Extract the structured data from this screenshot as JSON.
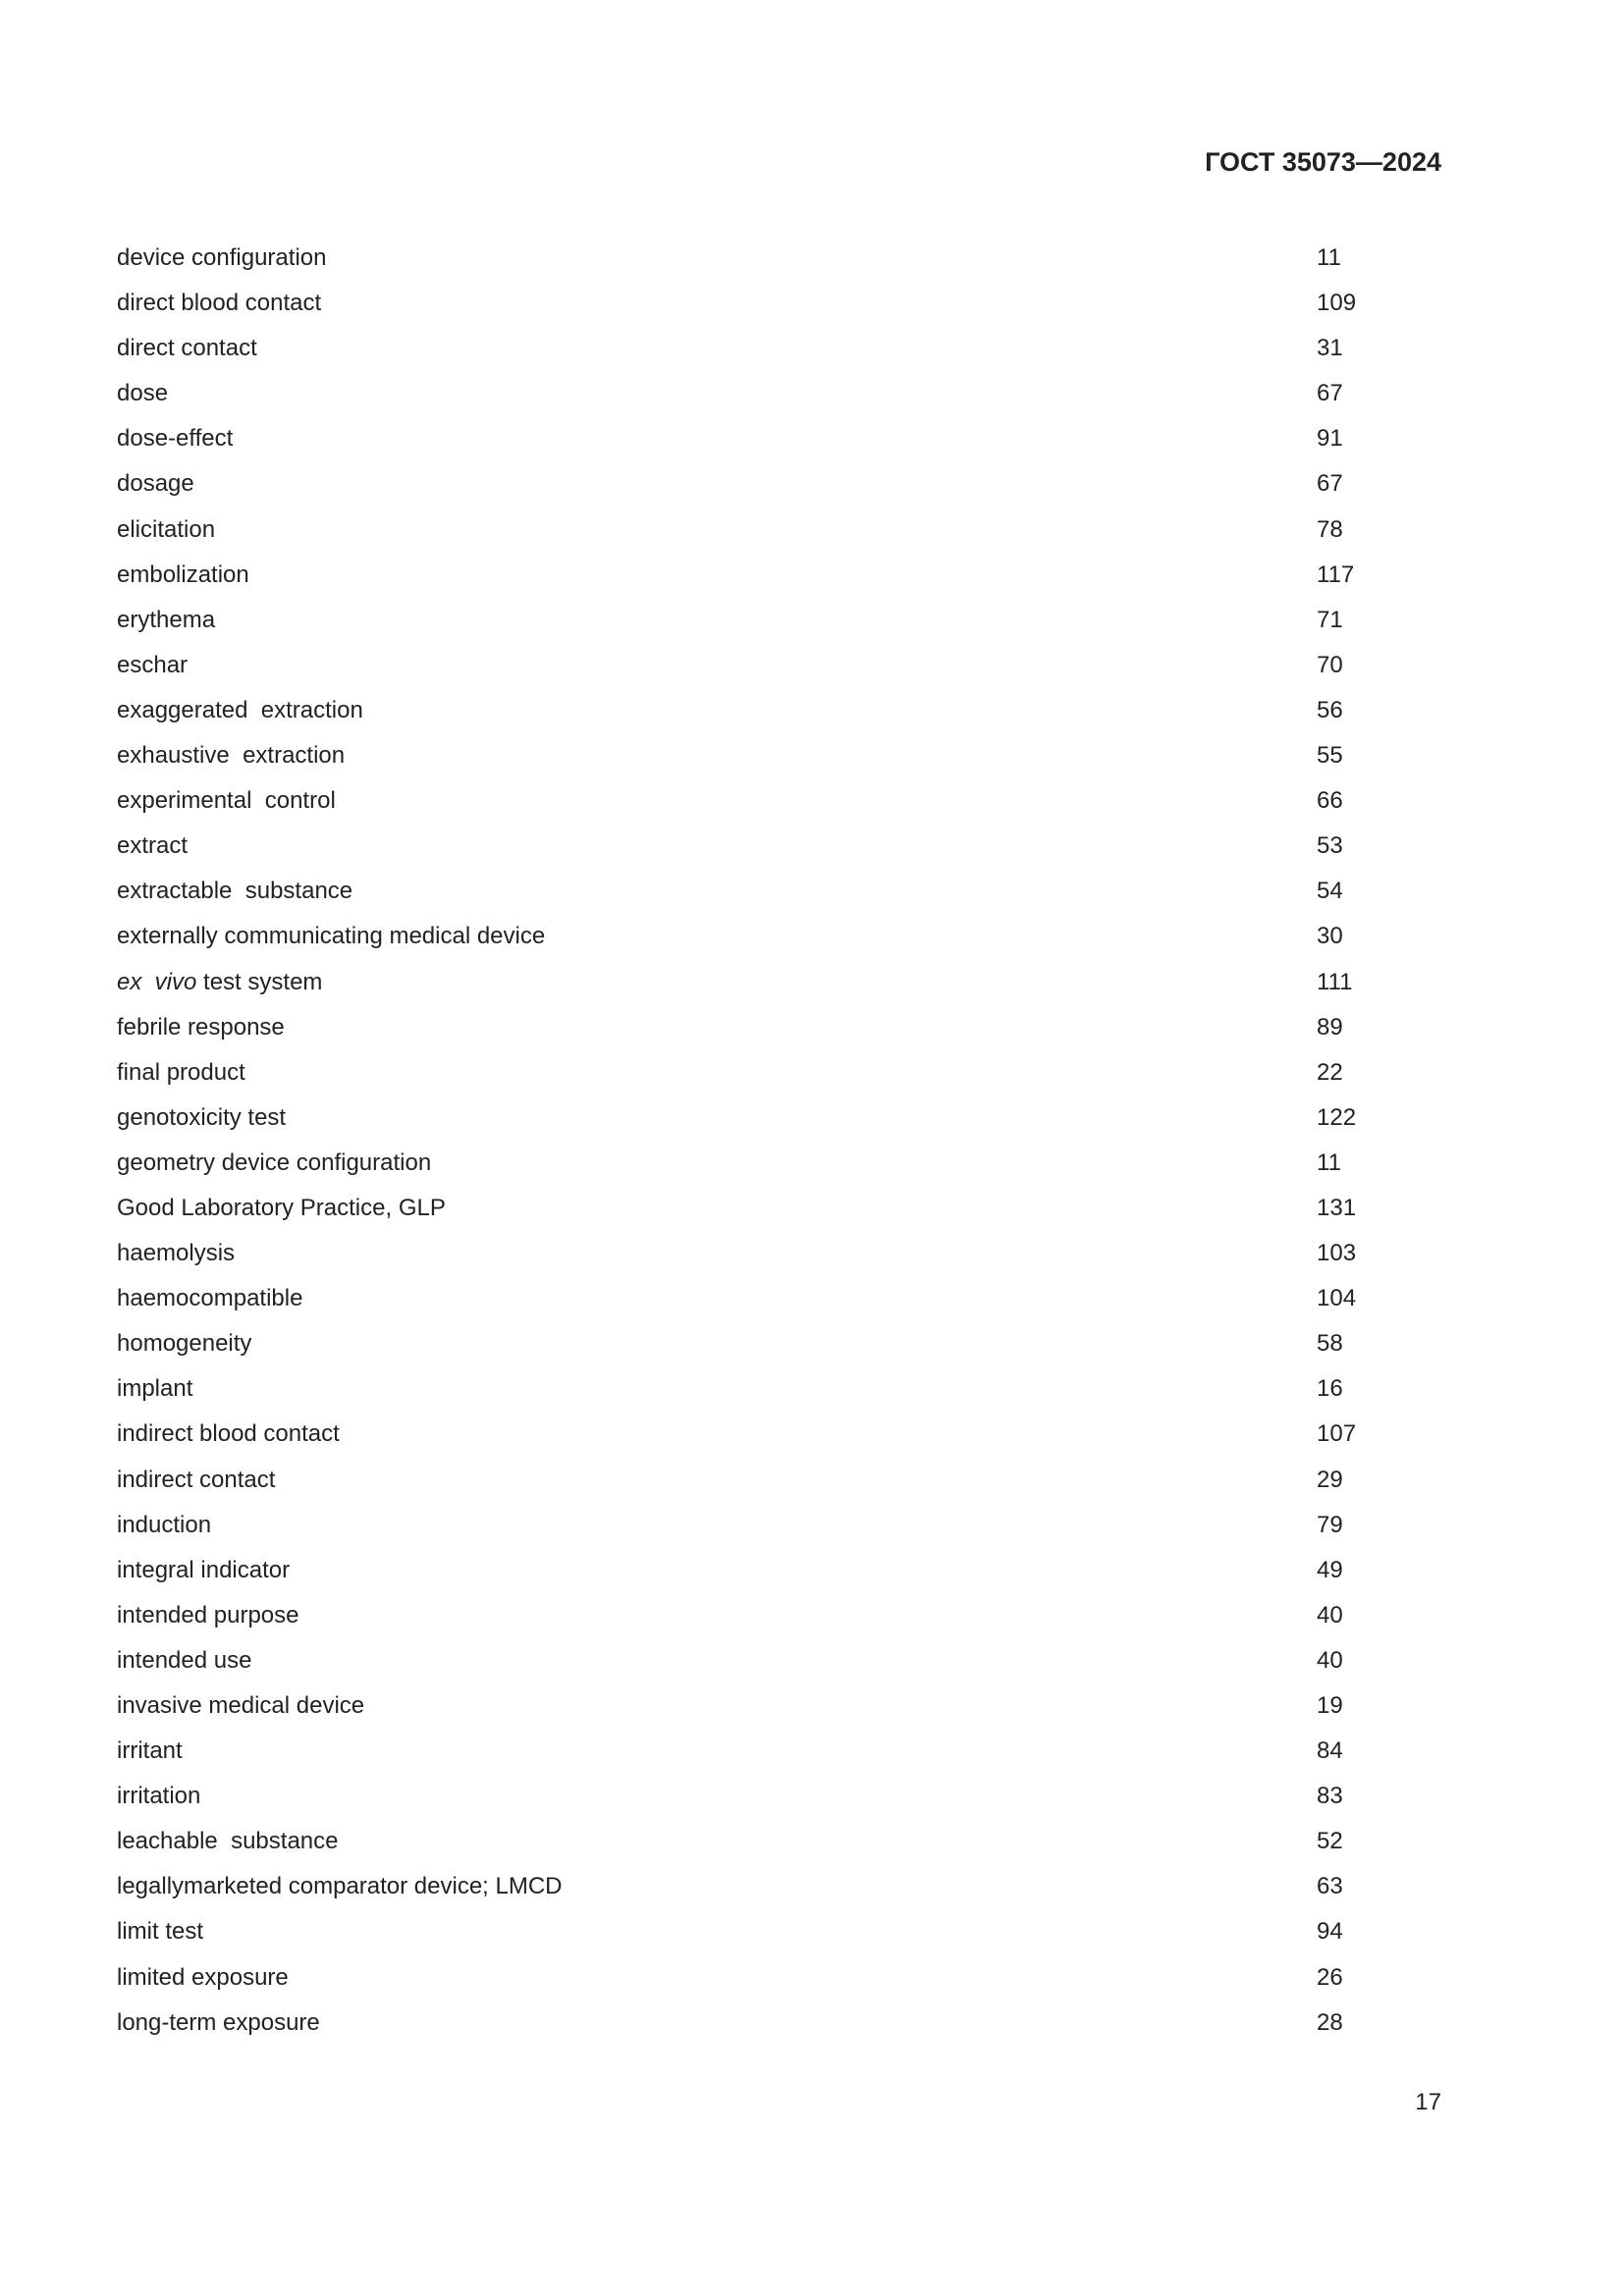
{
  "header": {
    "standard": "ГОСТ 35073—2024"
  },
  "entries": [
    {
      "term": [
        {
          "t": "device configuration"
        }
      ],
      "ref": "11"
    },
    {
      "term": [
        {
          "t": "direct blood contact"
        }
      ],
      "ref": "109"
    },
    {
      "term": [
        {
          "t": "direct contact"
        }
      ],
      "ref": "31"
    },
    {
      "term": [
        {
          "t": "dose"
        }
      ],
      "ref": "67"
    },
    {
      "term": [
        {
          "t": "dose-effect"
        }
      ],
      "ref": "91"
    },
    {
      "term": [
        {
          "t": "dosage"
        }
      ],
      "ref": "67"
    },
    {
      "term": [
        {
          "t": "elicitation"
        }
      ],
      "ref": "78"
    },
    {
      "term": [
        {
          "t": "embolization"
        }
      ],
      "ref": "117"
    },
    {
      "term": [
        {
          "t": "erythema"
        }
      ],
      "ref": "71"
    },
    {
      "term": [
        {
          "t": "eschar"
        }
      ],
      "ref": "70"
    },
    {
      "term": [
        {
          "t": "exaggerated  extraction"
        }
      ],
      "ref": "56"
    },
    {
      "term": [
        {
          "t": "exhaustive  extraction"
        }
      ],
      "ref": "55"
    },
    {
      "term": [
        {
          "t": "experimental  control"
        }
      ],
      "ref": "66"
    },
    {
      "term": [
        {
          "t": "extract"
        }
      ],
      "ref": "53"
    },
    {
      "term": [
        {
          "t": "extractable  substance"
        }
      ],
      "ref": "54"
    },
    {
      "term": [
        {
          "t": "externally communicating medical device"
        }
      ],
      "ref": "30"
    },
    {
      "term": [
        {
          "t": "ex  vivo",
          "italic": true
        },
        {
          "t": " test system"
        }
      ],
      "ref": "111"
    },
    {
      "term": [
        {
          "t": "febrile response"
        }
      ],
      "ref": "89"
    },
    {
      "term": [
        {
          "t": "final product"
        }
      ],
      "ref": "22"
    },
    {
      "term": [
        {
          "t": "genotoxicity test"
        }
      ],
      "ref": "122"
    },
    {
      "term": [
        {
          "t": "geometry device configuration"
        }
      ],
      "ref": "11"
    },
    {
      "term": [
        {
          "t": "Good Laboratory Practice, GLP"
        }
      ],
      "ref": "131"
    },
    {
      "term": [
        {
          "t": "haemolysis"
        }
      ],
      "ref": "103"
    },
    {
      "term": [
        {
          "t": "haemocompatible"
        }
      ],
      "ref": "104"
    },
    {
      "term": [
        {
          "t": "homogeneity"
        }
      ],
      "ref": "58"
    },
    {
      "term": [
        {
          "t": "implant"
        }
      ],
      "ref": "16"
    },
    {
      "term": [
        {
          "t": "indirect blood contact"
        }
      ],
      "ref": "107"
    },
    {
      "term": [
        {
          "t": "indirect contact"
        }
      ],
      "ref": "29"
    },
    {
      "term": [
        {
          "t": "induction"
        }
      ],
      "ref": "79"
    },
    {
      "term": [
        {
          "t": "integral indicator"
        }
      ],
      "ref": "49"
    },
    {
      "term": [
        {
          "t": "intended purpose"
        }
      ],
      "ref": "40"
    },
    {
      "term": [
        {
          "t": "intended use"
        }
      ],
      "ref": "40"
    },
    {
      "term": [
        {
          "t": "invasive medical device"
        }
      ],
      "ref": "19"
    },
    {
      "term": [
        {
          "t": "irritant"
        }
      ],
      "ref": "84"
    },
    {
      "term": [
        {
          "t": "irritation"
        }
      ],
      "ref": "83"
    },
    {
      "term": [
        {
          "t": "leachable  substance"
        }
      ],
      "ref": "52"
    },
    {
      "term": [
        {
          "t": "legallymarketed comparator device; LMCD"
        }
      ],
      "ref": "63"
    },
    {
      "term": [
        {
          "t": "limit test"
        }
      ],
      "ref": "94"
    },
    {
      "term": [
        {
          "t": "limited exposure"
        }
      ],
      "ref": "26"
    },
    {
      "term": [
        {
          "t": "long-term exposure"
        }
      ],
      "ref": "28"
    }
  ],
  "footer": {
    "page_number": "17"
  }
}
